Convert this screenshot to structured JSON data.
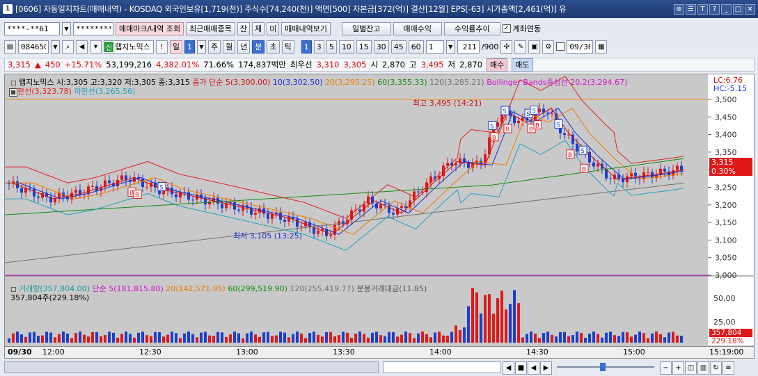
{
  "window": {
    "badge": "1",
    "title": "[0606] 자동일지차트(매매내역) - KOSDAQ 외국인보유[1,719(천)] 주식수[74,240(천)] 액면[500] 자본금[372(억)] 결산[12월] EPS[-63] 시가총액[2,461(억)] 유",
    "buttons": [
      "⊕",
      "☰",
      "T",
      "?",
      "_",
      "□",
      "✕"
    ]
  },
  "toolbar1": {
    "account": "****-**61",
    "password": "********",
    "trade_marks_button": "매매마크/내역 조회",
    "recent_trades_button": "최근매매종목",
    "tab_jan": "잔",
    "tab_che": "체",
    "tab_mi": "미",
    "trade_history_button": "매매내역보기",
    "daily_balance_button": "일별잔고",
    "trade_profit_button": "매매수익",
    "profit_trend_button": "수익률추이",
    "link_account_label": "계좌연동",
    "link_account_checked": true
  },
  "toolbar2": {
    "stock_code": "084650",
    "sin_badge": "신",
    "stock_name": "랩지노믹스",
    "period_day": "일",
    "period_value": "1",
    "week": "주",
    "month": "월",
    "year": "년",
    "minute": "분",
    "second": "초",
    "tick": "틱",
    "intervals": [
      "1",
      "3",
      "5",
      "10",
      "15",
      "30",
      "45",
      "60"
    ],
    "interval_selected": "1",
    "count_value": "1",
    "count_display": "211",
    "count_total": "/900",
    "date_value": "09/30"
  },
  "price_bar": {
    "price": "3,315",
    "change_arrow": "▲",
    "change": "450",
    "change_pct": "+15.71%",
    "volume": "53,199,216",
    "volume_pct": "4,382.01%",
    "ratio": "71.66%",
    "amount": "174,837백만",
    "best_ask_label": "최우선",
    "best_ask": "3,310",
    "best_bid": "3,305",
    "open_label": "시",
    "open": "2,870",
    "high_label": "고",
    "high": "3,495",
    "low_label": "저",
    "low": "2,870",
    "buy_button": "매수",
    "sell_button": "매도"
  },
  "price_legend": {
    "line1_name": "랩지노믹스 시:3,305 고:3,320 저:3,305 종:3,315",
    "ma5": "종가 단순 5(3,300.00)",
    "ma10": "10(3,302.50)",
    "ma20": "20(3,295.25)",
    "ma60": "60(3,355.33)",
    "ma120": "120(3,285.21)",
    "bollinger": "Bollinger Bands중심선 20,2(3,294.67)",
    "upper": "상한선(3,323.78)",
    "lower": "하한선(3,265.56)"
  },
  "right_labels": {
    "lc": "LC:6.76",
    "hc": "HC:-5.15",
    "current_price": "3,315",
    "current_pct": "0.30%",
    "volume_current": "357,804",
    "volume_pct": "229.18%"
  },
  "price_axis": [
    "3,500",
    "3,450",
    "3,400",
    "3,350",
    "3,300",
    "3,250",
    "3,200",
    "3,150",
    "3,100",
    "3,050",
    "3,000"
  ],
  "annotations": {
    "high_note": "최고 3,495 (14:21)",
    "low_note": "최저 3,105 (13:25)"
  },
  "volume_legend": {
    "volume": "거래량(357,804.00)",
    "ma5": "단순 5(181,815.80)",
    "ma20": "20(142,571.95)",
    "ma60": "60(299,519.90)",
    "ma120": "120(255,419.77)",
    "amount": "분봉거래대금(11.85)",
    "sub": "357,804주(229.18%)"
  },
  "volume_axis": [
    "50,00",
    "25,00"
  ],
  "time_axis": [
    "09/30",
    "12:00",
    "12:30",
    "13:00",
    "13:30",
    "14:00",
    "14:30",
    "15:00",
    "15:19:00"
  ],
  "colors": {
    "title_bg": "#1d3a72",
    "chart_bg": "#c9c9c9",
    "up": "#e01818",
    "down": "#1a3fd0",
    "ma5": "#d01010",
    "ma10": "#1a2fd0",
    "ma20": "#f07a00",
    "ma60": "#108a10",
    "ma120": "#707070",
    "bollinger": "#d010d0",
    "upper_band": "#e02020",
    "lower_band": "#20a0c0"
  }
}
